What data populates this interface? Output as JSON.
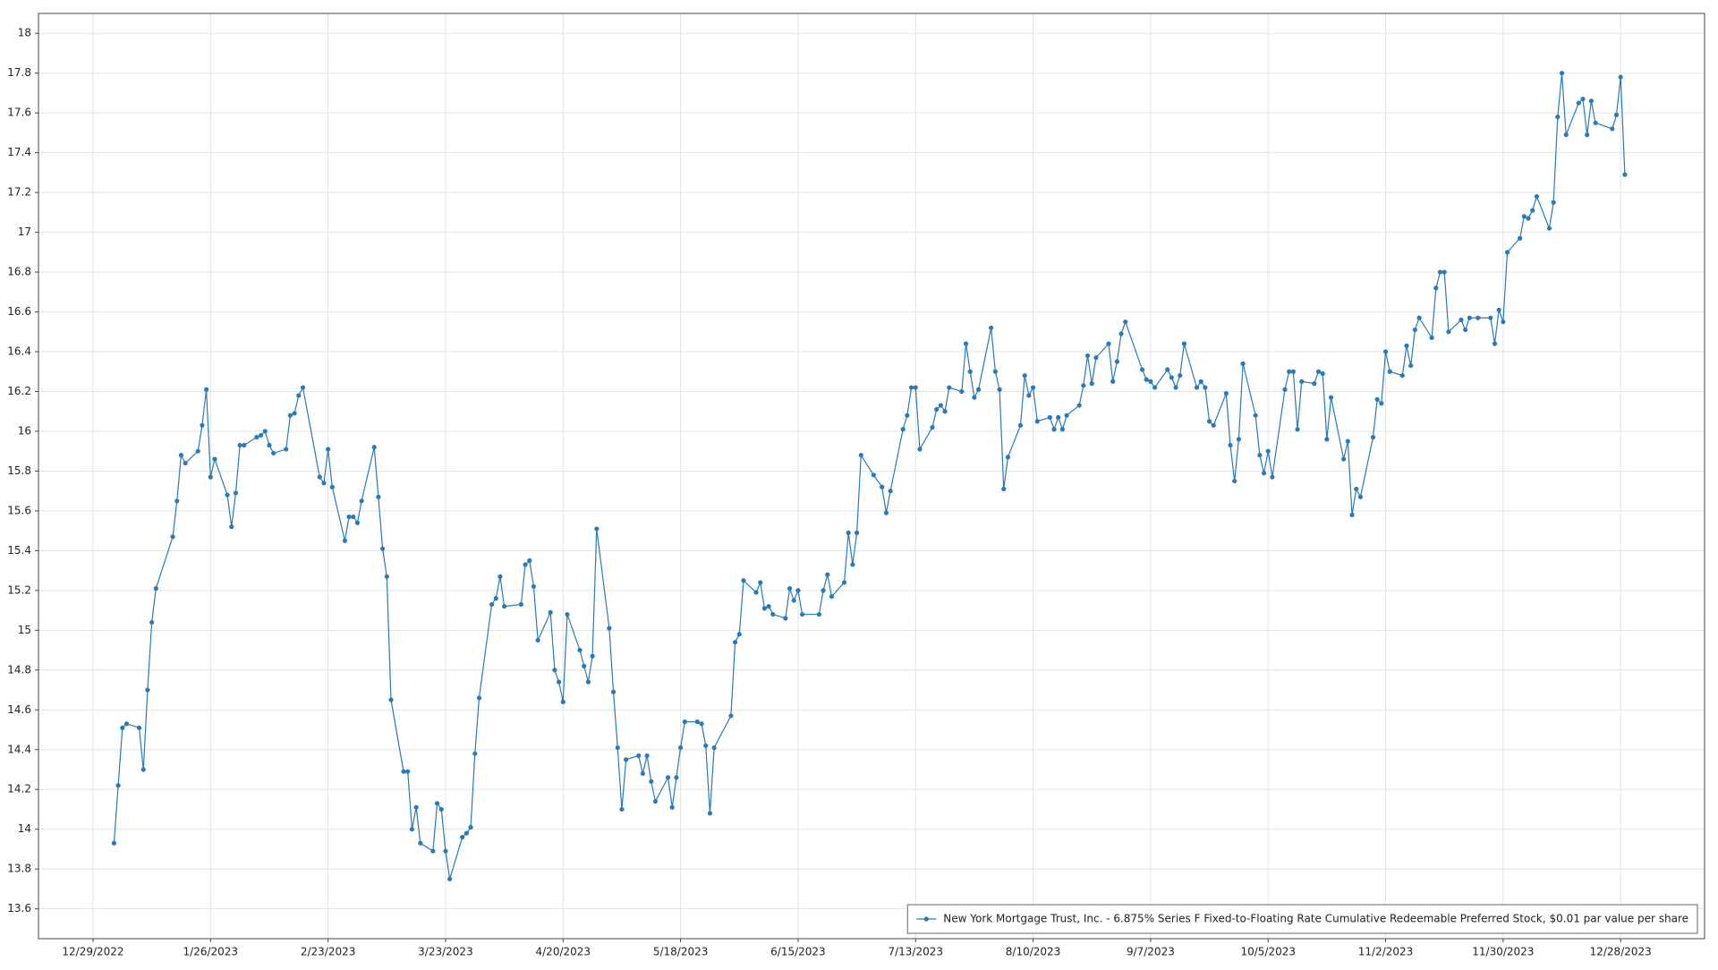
{
  "chart_data": {
    "type": "line",
    "x": [
      "2023-01-03",
      "2023-01-04",
      "2023-01-05",
      "2023-01-06",
      "2023-01-09",
      "2023-01-10",
      "2023-01-11",
      "2023-01-12",
      "2023-01-13",
      "2023-01-17",
      "2023-01-18",
      "2023-01-19",
      "2023-01-20",
      "2023-01-23",
      "2023-01-24",
      "2023-01-25",
      "2023-01-26",
      "2023-01-27",
      "2023-01-30",
      "2023-01-31",
      "2023-02-01",
      "2023-02-02",
      "2023-02-03",
      "2023-02-06",
      "2023-02-07",
      "2023-02-08",
      "2023-02-09",
      "2023-02-10",
      "2023-02-13",
      "2023-02-14",
      "2023-02-15",
      "2023-02-16",
      "2023-02-17",
      "2023-02-21",
      "2023-02-22",
      "2023-02-23",
      "2023-02-24",
      "2023-02-27",
      "2023-02-28",
      "2023-03-01",
      "2023-03-02",
      "2023-03-03",
      "2023-03-06",
      "2023-03-07",
      "2023-03-08",
      "2023-03-09",
      "2023-03-10",
      "2023-03-13",
      "2023-03-14",
      "2023-03-15",
      "2023-03-16",
      "2023-03-17",
      "2023-03-20",
      "2023-03-21",
      "2023-03-22",
      "2023-03-23",
      "2023-03-24",
      "2023-03-27",
      "2023-03-28",
      "2023-03-29",
      "2023-03-30",
      "2023-03-31",
      "2023-04-03",
      "2023-04-04",
      "2023-04-05",
      "2023-04-06",
      "2023-04-10",
      "2023-04-11",
      "2023-04-12",
      "2023-04-13",
      "2023-04-14",
      "2023-04-17",
      "2023-04-18",
      "2023-04-19",
      "2023-04-20",
      "2023-04-21",
      "2023-04-24",
      "2023-04-25",
      "2023-04-26",
      "2023-04-27",
      "2023-04-28",
      "2023-05-01",
      "2023-05-02",
      "2023-05-03",
      "2023-05-04",
      "2023-05-05",
      "2023-05-08",
      "2023-05-09",
      "2023-05-10",
      "2023-05-11",
      "2023-05-12",
      "2023-05-15",
      "2023-05-16",
      "2023-05-17",
      "2023-05-18",
      "2023-05-19",
      "2023-05-22",
      "2023-05-23",
      "2023-05-24",
      "2023-05-25",
      "2023-05-26",
      "2023-05-30",
      "2023-05-31",
      "2023-06-01",
      "2023-06-02",
      "2023-06-05",
      "2023-06-06",
      "2023-06-07",
      "2023-06-08",
      "2023-06-09",
      "2023-06-12",
      "2023-06-13",
      "2023-06-14",
      "2023-06-15",
      "2023-06-16",
      "2023-06-20",
      "2023-06-21",
      "2023-06-22",
      "2023-06-23",
      "2023-06-26",
      "2023-06-27",
      "2023-06-28",
      "2023-06-29",
      "2023-06-30",
      "2023-07-03",
      "2023-07-05",
      "2023-07-06",
      "2023-07-07",
      "2023-07-10",
      "2023-07-11",
      "2023-07-12",
      "2023-07-13",
      "2023-07-14",
      "2023-07-17",
      "2023-07-18",
      "2023-07-19",
      "2023-07-20",
      "2023-07-21",
      "2023-07-24",
      "2023-07-25",
      "2023-07-26",
      "2023-07-27",
      "2023-07-28",
      "2023-07-31",
      "2023-08-01",
      "2023-08-02",
      "2023-08-03",
      "2023-08-04",
      "2023-08-07",
      "2023-08-08",
      "2023-08-09",
      "2023-08-10",
      "2023-08-11",
      "2023-08-14",
      "2023-08-15",
      "2023-08-16",
      "2023-08-17",
      "2023-08-18",
      "2023-08-21",
      "2023-08-22",
      "2023-08-23",
      "2023-08-24",
      "2023-08-25",
      "2023-08-28",
      "2023-08-29",
      "2023-08-30",
      "2023-08-31",
      "2023-09-01",
      "2023-09-05",
      "2023-09-06",
      "2023-09-07",
      "2023-09-08",
      "2023-09-11",
      "2023-09-12",
      "2023-09-13",
      "2023-09-14",
      "2023-09-15",
      "2023-09-18",
      "2023-09-19",
      "2023-09-20",
      "2023-09-21",
      "2023-09-22",
      "2023-09-25",
      "2023-09-26",
      "2023-09-27",
      "2023-09-28",
      "2023-09-29",
      "2023-10-02",
      "2023-10-03",
      "2023-10-04",
      "2023-10-05",
      "2023-10-06",
      "2023-10-09",
      "2023-10-10",
      "2023-10-11",
      "2023-10-12",
      "2023-10-13",
      "2023-10-16",
      "2023-10-17",
      "2023-10-18",
      "2023-10-19",
      "2023-10-20",
      "2023-10-23",
      "2023-10-24",
      "2023-10-25",
      "2023-10-26",
      "2023-10-27",
      "2023-10-30",
      "2023-10-31",
      "2023-11-01",
      "2023-11-02",
      "2023-11-03",
      "2023-11-06",
      "2023-11-07",
      "2023-11-08",
      "2023-11-09",
      "2023-11-10",
      "2023-11-13",
      "2023-11-14",
      "2023-11-15",
      "2023-11-16",
      "2023-11-17",
      "2023-11-20",
      "2023-11-21",
      "2023-11-22",
      "2023-11-24",
      "2023-11-27",
      "2023-11-28",
      "2023-11-29",
      "2023-11-30",
      "2023-12-01",
      "2023-12-04",
      "2023-12-05",
      "2023-12-06",
      "2023-12-07",
      "2023-12-08",
      "2023-12-11",
      "2023-12-12",
      "2023-12-13",
      "2023-12-14",
      "2023-12-15",
      "2023-12-18",
      "2023-12-19",
      "2023-12-20",
      "2023-12-21",
      "2023-12-22",
      "2023-12-26",
      "2023-12-27",
      "2023-12-28",
      "2023-12-29"
    ],
    "series": [
      {
        "name": "New York Mortgage Trust, Inc. - 6.875% Series F Fixed-to-Floating Rate Cumulative Redeemable Preferred Stock, $0.01 par value per share",
        "color": "#2a7ab8",
        "values": [
          13.93,
          14.22,
          14.51,
          14.53,
          14.51,
          14.3,
          14.7,
          15.04,
          15.21,
          15.47,
          15.65,
          15.88,
          15.84,
          15.9,
          16.03,
          16.21,
          15.77,
          15.86,
          15.68,
          15.52,
          15.69,
          15.93,
          15.93,
          15.97,
          15.98,
          16.0,
          15.93,
          15.89,
          15.91,
          16.08,
          16.09,
          16.18,
          16.22,
          15.77,
          15.74,
          15.91,
          15.72,
          15.45,
          15.57,
          15.57,
          15.54,
          15.65,
          15.92,
          15.67,
          15.41,
          15.27,
          14.65,
          14.29,
          14.29,
          14.0,
          14.11,
          13.93,
          13.89,
          14.13,
          14.1,
          13.89,
          13.75,
          13.96,
          13.98,
          14.01,
          14.38,
          14.66,
          15.13,
          15.16,
          15.27,
          15.12,
          15.13,
          15.33,
          15.35,
          15.22,
          14.95,
          15.09,
          14.8,
          14.74,
          14.64,
          15.08,
          14.9,
          14.82,
          14.74,
          14.87,
          15.51,
          15.01,
          14.69,
          14.41,
          14.1,
          14.35,
          14.37,
          14.28,
          14.37,
          14.24,
          14.14,
          14.26,
          14.11,
          14.26,
          14.41,
          14.54,
          14.54,
          14.53,
          14.42,
          14.08,
          14.41,
          14.57,
          14.94,
          14.98,
          15.25,
          15.19,
          15.24,
          15.11,
          15.12,
          15.08,
          15.06,
          15.21,
          15.15,
          15.2,
          15.08,
          15.08,
          15.2,
          15.28,
          15.17,
          15.24,
          15.49,
          15.33,
          15.49,
          15.88,
          15.78,
          15.72,
          15.59,
          15.7,
          16.01,
          16.08,
          16.22,
          16.22,
          15.91,
          16.02,
          16.11,
          16.13,
          16.1,
          16.22,
          16.2,
          16.44,
          16.3,
          16.17,
          16.21,
          16.52,
          16.3,
          16.21,
          15.71,
          15.87,
          16.03,
          16.28,
          16.18,
          16.22,
          16.05,
          16.07,
          16.01,
          16.07,
          16.01,
          16.08,
          16.13,
          16.23,
          16.38,
          16.24,
          16.37,
          16.44,
          16.25,
          16.35,
          16.49,
          16.55,
          16.31,
          16.26,
          16.25,
          16.22,
          16.31,
          16.27,
          16.22,
          16.28,
          16.44,
          16.22,
          16.25,
          16.22,
          16.05,
          16.03,
          16.19,
          15.93,
          15.75,
          15.96,
          16.34,
          16.08,
          15.88,
          15.79,
          15.9,
          15.77,
          16.21,
          16.3,
          16.3,
          16.01,
          16.25,
          16.24,
          16.3,
          16.29,
          15.96,
          16.17,
          15.86,
          15.95,
          15.58,
          15.71,
          15.67,
          15.97,
          16.16,
          16.14,
          16.4,
          16.3,
          16.28,
          16.43,
          16.33,
          16.51,
          16.57,
          16.47,
          16.72,
          16.8,
          16.8,
          16.5,
          16.56,
          16.51,
          16.57,
          16.57,
          16.57,
          16.44,
          16.61,
          16.55,
          16.9,
          16.97,
          17.08,
          17.07,
          17.11,
          17.18,
          17.02,
          17.15,
          17.58,
          17.8,
          17.49,
          17.65,
          17.67,
          17.49,
          17.66,
          17.55,
          17.52,
          17.59,
          17.78,
          17.29
        ]
      }
    ],
    "xlim": [
      "12/16/2022",
      "1/17/2024"
    ],
    "xticks": [
      "12/29/2022",
      "1/26/2023",
      "2/23/2023",
      "3/23/2023",
      "4/20/2023",
      "5/18/2023",
      "6/15/2023",
      "7/13/2023",
      "8/10/2023",
      "9/7/2023",
      "10/5/2023",
      "11/2/2023",
      "11/30/2023",
      "12/28/2023"
    ],
    "ylim": [
      13.45,
      18.1
    ],
    "yticks": [
      13.6,
      13.8,
      14,
      14.2,
      14.4,
      14.6,
      14.8,
      15,
      15.2,
      15.4,
      15.6,
      15.8,
      16,
      16.2,
      16.4,
      16.6,
      16.8,
      17,
      17.2,
      17.4,
      17.6,
      17.8,
      18
    ],
    "grid": true,
    "legend": "lower right"
  }
}
